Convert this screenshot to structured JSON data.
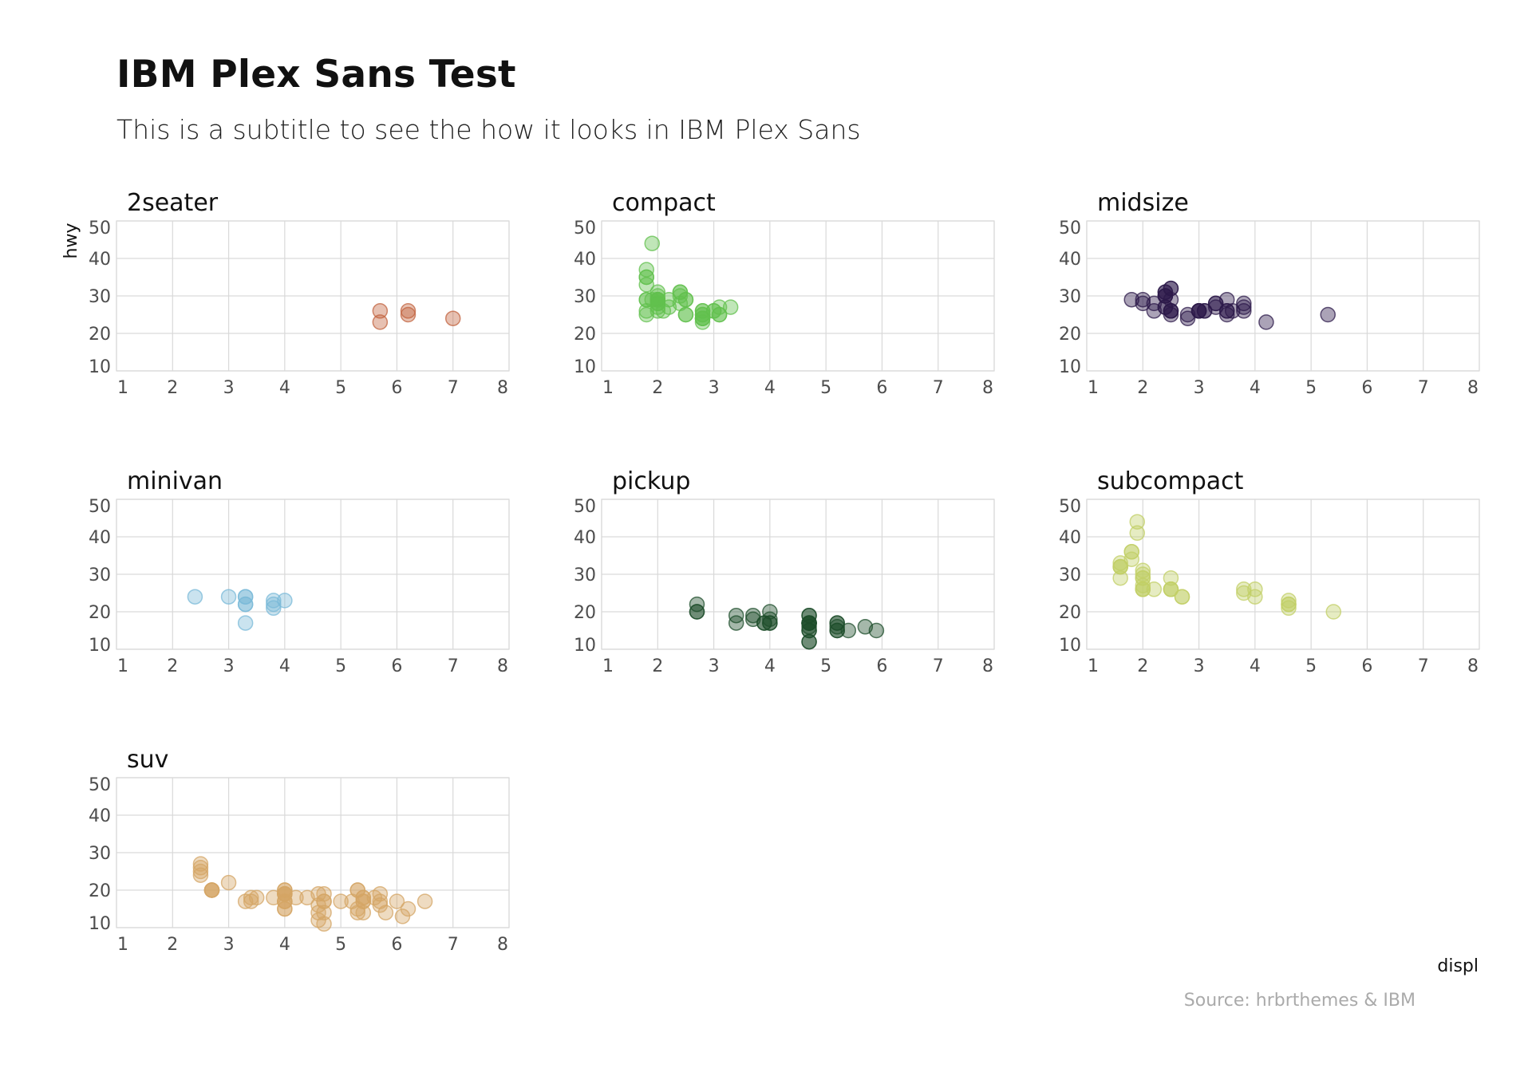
{
  "title": "IBM Plex Sans Test",
  "subtitle": "This is a subtitle to see the how it looks in IBM Plex Sans",
  "caption": "Source: hrbrthemes & IBM",
  "chart_data": {
    "type": "scatter",
    "facet_by": "class",
    "xlabel": "displ",
    "ylabel": "hwy",
    "xlim": [
      1,
      8
    ],
    "ylim": [
      10,
      50
    ],
    "x_ticks": [
      1,
      2,
      3,
      4,
      5,
      6,
      7,
      8
    ],
    "y_ticks": [
      10,
      20,
      30,
      40,
      50
    ],
    "grid": true,
    "point_opacity": 0.4,
    "panels": [
      {
        "name": "2seater",
        "color": "#c2633f",
        "points": [
          [
            5.7,
            26
          ],
          [
            5.7,
            23
          ],
          [
            6.2,
            26
          ],
          [
            6.2,
            25
          ],
          [
            7.0,
            24
          ]
        ]
      },
      {
        "name": "compact",
        "color": "#62c04e",
        "points": [
          [
            1.8,
            29
          ],
          [
            1.8,
            29
          ],
          [
            2.0,
            31
          ],
          [
            2.0,
            30
          ],
          [
            2.8,
            26
          ],
          [
            2.8,
            26
          ],
          [
            3.1,
            27
          ],
          [
            1.8,
            26
          ],
          [
            1.8,
            25
          ],
          [
            2.0,
            28
          ],
          [
            2.0,
            27
          ],
          [
            2.8,
            25
          ],
          [
            2.8,
            25
          ],
          [
            3.1,
            25
          ],
          [
            3.1,
            25
          ],
          [
            2.2,
            27
          ],
          [
            2.2,
            29
          ],
          [
            2.4,
            31
          ],
          [
            2.4,
            31
          ],
          [
            3.0,
            26
          ],
          [
            3.0,
            26
          ],
          [
            3.3,
            27
          ],
          [
            1.8,
            35
          ],
          [
            1.8,
            37
          ],
          [
            1.8,
            35
          ],
          [
            1.9,
            44
          ],
          [
            2.0,
            29
          ],
          [
            2.0,
            26
          ],
          [
            2.0,
            29
          ],
          [
            2.0,
            29
          ],
          [
            2.5,
            29
          ],
          [
            2.5,
            29
          ],
          [
            2.8,
            23
          ],
          [
            2.8,
            24
          ],
          [
            2.5,
            25
          ],
          [
            2.0,
            28
          ],
          [
            2.0,
            29
          ],
          [
            2.5,
            25
          ],
          [
            1.8,
            33
          ],
          [
            2.4,
            30
          ],
          [
            2.4,
            28
          ],
          [
            2.8,
            24
          ],
          [
            2.8,
            24
          ],
          [
            1.9,
            29
          ],
          [
            2.0,
            28
          ],
          [
            2.0,
            29
          ],
          [
            2.1,
            26
          ]
        ]
      },
      {
        "name": "midsize",
        "color": "#2c1a4a",
        "points": [
          [
            2.4,
            27
          ],
          [
            2.4,
            30
          ],
          [
            3.1,
            26
          ],
          [
            3.5,
            29
          ],
          [
            3.6,
            26
          ],
          [
            2.4,
            31
          ],
          [
            3.0,
            26
          ],
          [
            3.3,
            28
          ],
          [
            3.3,
            27
          ],
          [
            3.3,
            28
          ],
          [
            3.8,
            26
          ],
          [
            3.8,
            27
          ],
          [
            3.8,
            28
          ],
          [
            2.5,
            26
          ],
          [
            2.5,
            25
          ],
          [
            2.2,
            26
          ],
          [
            2.2,
            28
          ],
          [
            2.4,
            31
          ],
          [
            2.4,
            30
          ],
          [
            3.0,
            26
          ],
          [
            3.0,
            26
          ],
          [
            3.5,
            26
          ],
          [
            1.8,
            29
          ],
          [
            2.0,
            28
          ],
          [
            2.0,
            29
          ],
          [
            2.8,
            25
          ],
          [
            2.8,
            24
          ],
          [
            3.1,
            26
          ],
          [
            2.4,
            27
          ],
          [
            2.4,
            30
          ],
          [
            2.5,
            32
          ],
          [
            2.5,
            32
          ],
          [
            4.2,
            23
          ],
          [
            5.3,
            25
          ],
          [
            2.5,
            26
          ],
          [
            2.5,
            26
          ],
          [
            3.5,
            26
          ],
          [
            3.5,
            25
          ],
          [
            2.5,
            29
          ],
          [
            3.0,
            26
          ]
        ]
      },
      {
        "name": "minivan",
        "color": "#7ab9d8",
        "points": [
          [
            2.4,
            24
          ],
          [
            3.0,
            24
          ],
          [
            3.3,
            22
          ],
          [
            3.3,
            22
          ],
          [
            3.3,
            24
          ],
          [
            3.3,
            24
          ],
          [
            3.3,
            17
          ],
          [
            3.8,
            22
          ],
          [
            3.8,
            21
          ],
          [
            3.8,
            23
          ],
          [
            4.0,
            23
          ]
        ]
      },
      {
        "name": "pickup",
        "color": "#1e4d2b",
        "points": [
          [
            2.7,
            20
          ],
          [
            2.7,
            20
          ],
          [
            2.7,
            22
          ],
          [
            3.4,
            17
          ],
          [
            3.4,
            19
          ],
          [
            4.0,
            18
          ],
          [
            4.7,
            17
          ],
          [
            4.7,
            12
          ],
          [
            4.7,
            17
          ],
          [
            5.2,
            17
          ],
          [
            5.2,
            15
          ],
          [
            3.7,
            19
          ],
          [
            3.7,
            18
          ],
          [
            3.9,
            17
          ],
          [
            3.9,
            17
          ],
          [
            4.7,
            19
          ],
          [
            4.7,
            19
          ],
          [
            4.7,
            17
          ],
          [
            5.2,
            17
          ],
          [
            5.7,
            16
          ],
          [
            5.9,
            15
          ],
          [
            4.7,
            12
          ],
          [
            4.7,
            15
          ],
          [
            4.7,
            16
          ],
          [
            4.7,
            17
          ],
          [
            5.2,
            15
          ],
          [
            5.2,
            16
          ],
          [
            5.4,
            15
          ],
          [
            4.0,
            20
          ],
          [
            4.0,
            17
          ],
          [
            4.0,
            17
          ],
          [
            4.7,
            17
          ],
          [
            4.7,
            15
          ]
        ]
      },
      {
        "name": "subcompact",
        "color": "#c1cf66",
        "points": [
          [
            3.8,
            26
          ],
          [
            3.8,
            25
          ],
          [
            4.0,
            26
          ],
          [
            4.0,
            24
          ],
          [
            4.6,
            21
          ],
          [
            4.6,
            22
          ],
          [
            4.6,
            23
          ],
          [
            4.6,
            22
          ],
          [
            5.4,
            20
          ],
          [
            1.6,
            33
          ],
          [
            1.6,
            32
          ],
          [
            1.6,
            32
          ],
          [
            1.6,
            29
          ],
          [
            1.6,
            32
          ],
          [
            1.8,
            34
          ],
          [
            1.8,
            36
          ],
          [
            1.8,
            36
          ],
          [
            2.0,
            29
          ],
          [
            2.0,
            26
          ],
          [
            2.0,
            27
          ],
          [
            2.0,
            30
          ],
          [
            2.0,
            31
          ],
          [
            2.0,
            26
          ],
          [
            2.5,
            26
          ],
          [
            2.5,
            29
          ],
          [
            2.2,
            26
          ],
          [
            2.5,
            26
          ],
          [
            2.5,
            26
          ],
          [
            2.7,
            24
          ],
          [
            2.7,
            24
          ],
          [
            1.9,
            44
          ],
          [
            1.9,
            41
          ],
          [
            2.0,
            29
          ],
          [
            2.0,
            26
          ]
        ]
      },
      {
        "name": "suv",
        "color": "#d4a665",
        "points": [
          [
            5.3,
            20
          ],
          [
            5.3,
            15
          ],
          [
            5.3,
            20
          ],
          [
            5.7,
            17
          ],
          [
            6.0,
            17
          ],
          [
            5.7,
            19
          ],
          [
            5.7,
            16
          ],
          [
            6.2,
            15
          ],
          [
            6.5,
            17
          ],
          [
            4.0,
            17
          ],
          [
            4.0,
            19
          ],
          [
            4.6,
            19
          ],
          [
            4.7,
            17
          ],
          [
            5.4,
            17
          ],
          [
            5.4,
            18
          ],
          [
            2.5,
            26
          ],
          [
            2.5,
            25
          ],
          [
            2.5,
            24
          ],
          [
            2.5,
            27
          ],
          [
            2.7,
            20
          ],
          [
            2.7,
            20
          ],
          [
            3.0,
            22
          ],
          [
            3.4,
            17
          ],
          [
            3.3,
            17
          ],
          [
            4.0,
            19
          ],
          [
            4.2,
            18
          ],
          [
            4.0,
            17
          ],
          [
            4.0,
            20
          ],
          [
            4.0,
            20
          ],
          [
            4.0,
            19
          ],
          [
            4.7,
            17
          ],
          [
            4.7,
            14
          ],
          [
            4.7,
            19
          ],
          [
            5.6,
            18
          ],
          [
            5.8,
            14
          ],
          [
            6.1,
            13
          ],
          [
            4.6,
            12
          ],
          [
            4.6,
            14
          ],
          [
            5.4,
            18
          ],
          [
            5.4,
            17
          ],
          [
            4.0,
            19
          ],
          [
            4.7,
            11
          ],
          [
            5.2,
            17
          ],
          [
            5.0,
            17
          ],
          [
            5.3,
            14
          ],
          [
            3.8,
            18
          ],
          [
            3.5,
            18
          ],
          [
            4.0,
            15
          ],
          [
            4.4,
            18
          ],
          [
            2.7,
            20
          ],
          [
            2.7,
            20
          ],
          [
            4.0,
            17
          ],
          [
            4.6,
            16
          ],
          [
            5.4,
            14
          ],
          [
            4.0,
            15
          ],
          [
            3.4,
            18
          ]
        ]
      }
    ]
  }
}
